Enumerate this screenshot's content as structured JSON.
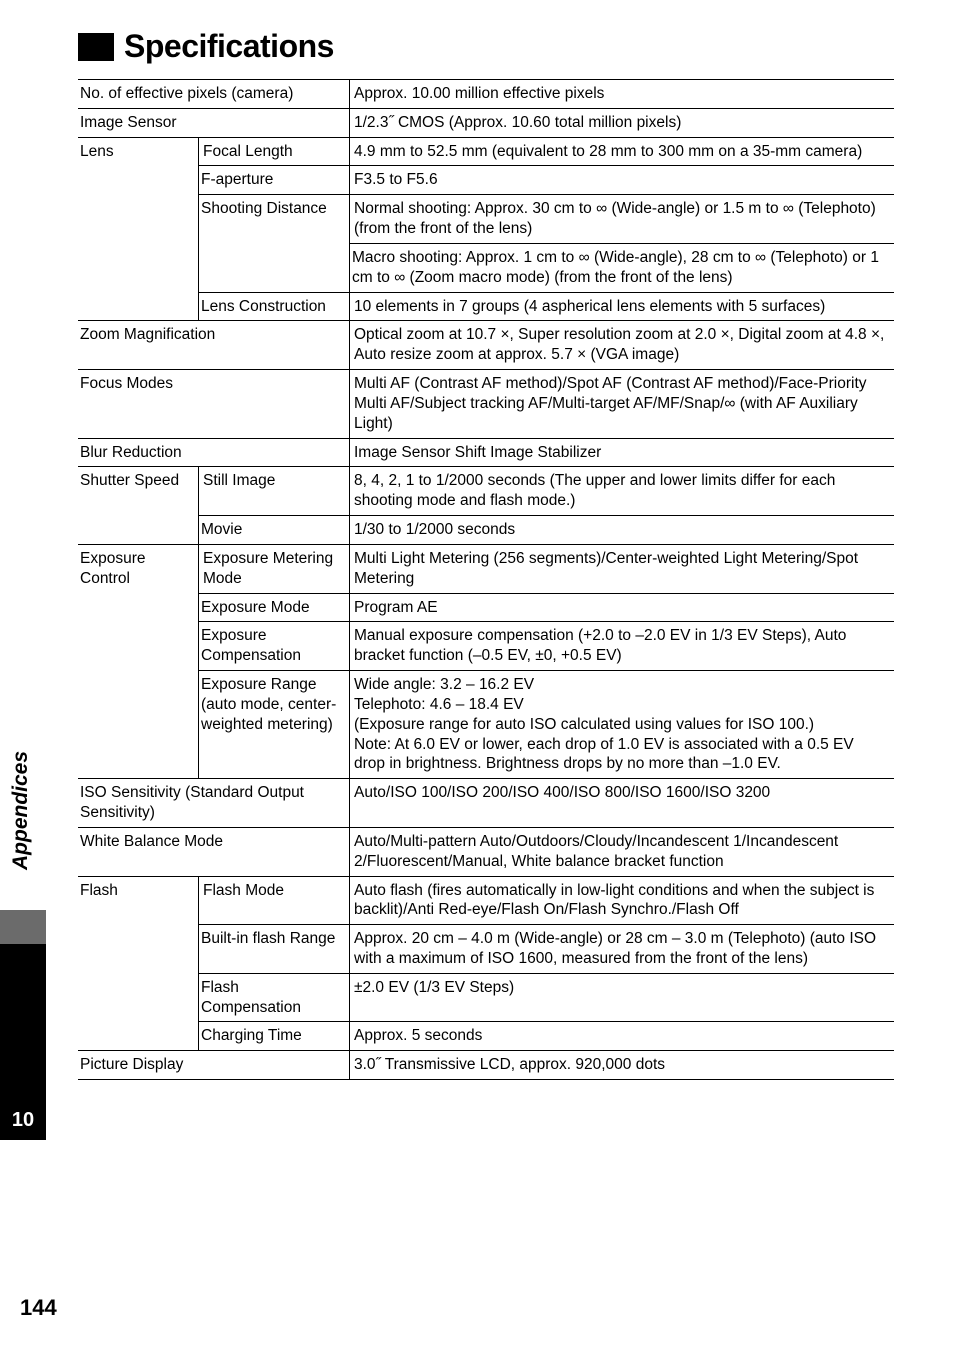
{
  "title": "Specifications",
  "side_section_label": "Appendices",
  "side_tab_number": "10",
  "page_number": "144",
  "rows": [
    {
      "type": "kv",
      "label": "No. of effective pixels (camera)",
      "value": "Approx. 10.00 million effective pixels"
    },
    {
      "type": "kv",
      "label": "Image Sensor",
      "value": "1/2.3˝ CMOS (Approx. 10.60 total million pixels)"
    },
    {
      "type": "group_start",
      "label": "Lens",
      "sub": "Focal Length",
      "value": "4.9 mm to 52.5 mm (equivalent to 28 mm to 300 mm on a 35-mm camera)"
    },
    {
      "type": "sub",
      "sub": "F-aperture",
      "value": "F3.5 to F5.6"
    },
    {
      "type": "sub_multi_start",
      "sub": "Shooting Distance",
      "value": "Normal shooting: Approx. 30 cm to ∞ (Wide-angle) or 1.5 m to ∞ (Telephoto) (from the front of the lens)"
    },
    {
      "type": "value_only",
      "value": "Macro shooting: Approx. 1 cm to ∞ (Wide-angle), 28 cm to ∞ (Telephoto) or 1 cm to ∞ (Zoom macro mode) (from the front of the lens)"
    },
    {
      "type": "sub",
      "sub": "Lens Construction",
      "value": "10 elements in 7 groups (4 aspherical lens elements with 5 surfaces)"
    },
    {
      "type": "kv",
      "label": "Zoom Magnification",
      "value": "Optical zoom at 10.7 ×, Super resolution zoom at 2.0 ×, Digital zoom at 4.8 ×, Auto resize zoom at approx. 5.7 × (VGA image)"
    },
    {
      "type": "kv",
      "label": "Focus Modes",
      "value": "Multi AF (Contrast AF method)/Spot AF (Contrast AF method)/Face-Priority Multi AF/Subject tracking AF/Multi-target AF/MF/Snap/∞ (with AF Auxiliary Light)"
    },
    {
      "type": "kv",
      "label": "Blur Reduction",
      "value": "Image Sensor Shift Image Stabilizer"
    },
    {
      "type": "group_start",
      "label": "Shutter Speed",
      "sub": "Still Image",
      "value": "8, 4, 2, 1 to 1/2000 seconds (The upper and lower limits differ for each shooting mode and flash mode.)"
    },
    {
      "type": "sub",
      "sub": "Movie",
      "value": "1/30 to 1/2000 seconds"
    },
    {
      "type": "group_start",
      "label": "Exposure Control",
      "sub": "Exposure Metering Mode",
      "value": "Multi Light Metering (256 segments)/Center-weighted Light Metering/Spot Metering"
    },
    {
      "type": "sub",
      "sub": "Exposure Mode",
      "value": "Program AE"
    },
    {
      "type": "sub",
      "sub": "Exposure Compensation",
      "value": "Manual exposure compensation (+2.0 to –2.0 EV in 1/3 EV Steps), Auto bracket function (–0.5 EV, ±0, +0.5 EV)"
    },
    {
      "type": "sub_multi_start",
      "sub": "Exposure Range (auto mode, center-weighted metering)",
      "value": "Wide angle: 3.2 – 16.2 EV\nTelephoto: 4.6 – 18.4 EV\n(Exposure range for auto ISO calculated using values for ISO 100.)\nNote: At 6.0 EV or lower, each drop of 1.0 EV is associated with a 0.5 EV drop in brightness. Brightness drops by no more than –1.0 EV."
    },
    {
      "type": "kv",
      "label": "ISO Sensitivity (Standard Output Sensitivity)",
      "value": "Auto/ISO 100/ISO 200/ISO 400/ISO 800/ISO 1600/ISO 3200"
    },
    {
      "type": "kv",
      "label": "White Balance Mode",
      "value": "Auto/Multi-pattern Auto/Outdoors/Cloudy/Incandescent 1/Incandescent 2/Fluorescent/Manual, White balance bracket function"
    },
    {
      "type": "group_start",
      "label": "Flash",
      "sub": "Flash Mode",
      "value": "Auto flash (fires automatically in low-light conditions and when the subject is backlit)/Anti Red-eye/Flash On/Flash Synchro./Flash Off"
    },
    {
      "type": "sub",
      "sub": "Built-in flash Range",
      "value": "Approx. 20 cm – 4.0 m (Wide-angle) or 28 cm – 3.0 m (Telephoto) (auto ISO with a maximum of ISO 1600, measured from the front of the lens)"
    },
    {
      "type": "sub",
      "sub": "Flash Compensation",
      "value": "±2.0 EV (1/3 EV Steps)"
    },
    {
      "type": "sub",
      "sub": "Charging Time",
      "value": "Approx. 5 seconds"
    },
    {
      "type": "kv",
      "label": "Picture Display",
      "value": "3.0˝ Transmissive LCD, approx. 920,000 dots"
    }
  ]
}
